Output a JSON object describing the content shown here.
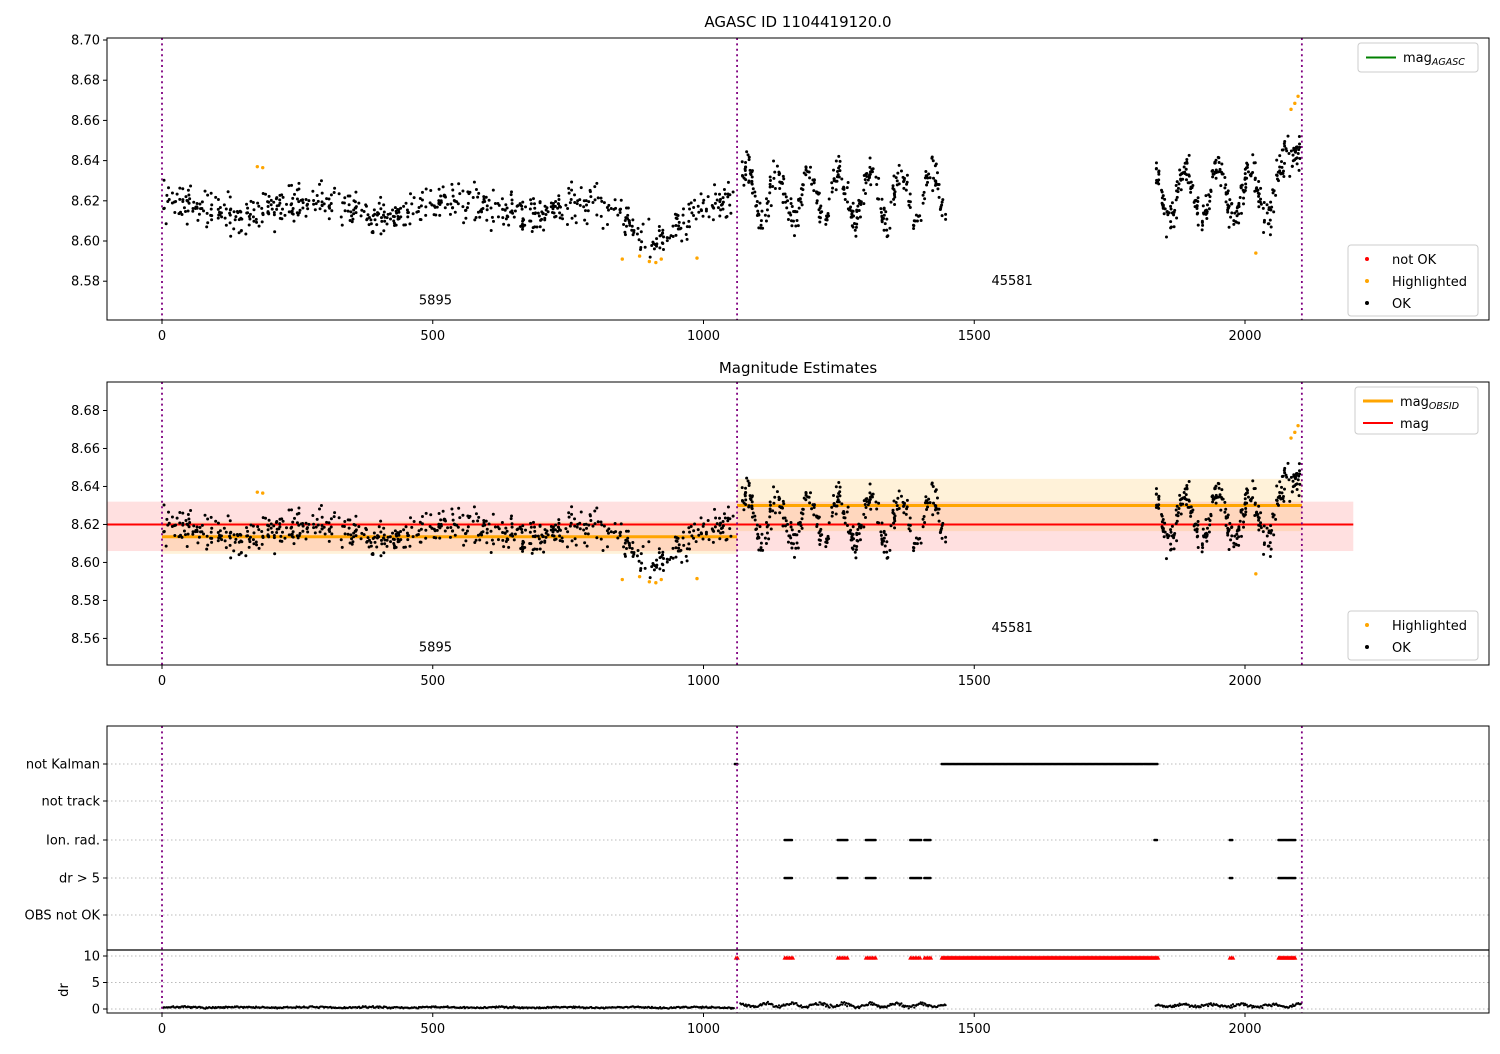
{
  "figure_title": "AGASC ID 1104419120.0",
  "colors": {
    "ok": "#000000",
    "highlighted": "#ffa500",
    "not_ok": "#ff0000",
    "mag_line": "#ff0000",
    "mag_band": "rgba(255,0,0,0.12)",
    "mag_obsid_line": "#ffa500",
    "mag_obsid_band": "rgba(255,165,0,0.15)",
    "mag_agasc_line": "#008000",
    "vline": "#800080",
    "grid": "#bbbbbb",
    "dr_limit_line": "#000000"
  },
  "chart_data": [
    {
      "type": "scatter",
      "title": "AGASC ID 1104419120.0",
      "xlim": [
        -102,
        2450
      ],
      "ylim": [
        8.5607,
        8.701
      ],
      "xticks": [
        0,
        500,
        1000,
        1500,
        2000
      ],
      "yticks": [
        8.58,
        8.6,
        8.62,
        8.64,
        8.66,
        8.68,
        8.7
      ],
      "vlines_x": [
        0,
        1062,
        2105
      ],
      "obsid_labels": [
        {
          "text": "5895",
          "x": 505,
          "y": 8.5685
        },
        {
          "text": "45581",
          "x": 1570,
          "y": 8.578
        }
      ],
      "legend_line": [
        {
          "main": "mag",
          "sub": "AGASC"
        }
      ],
      "legend_markers": [
        {
          "label": "not OK",
          "color_key": "not_ok"
        },
        {
          "label": "Highlighted",
          "color_key": "highlighted"
        },
        {
          "label": "OK",
          "color_key": "ok"
        }
      ],
      "scatter_segments": [
        {
          "x0": 2,
          "x1": 1055,
          "n": 680,
          "base": 8.6163,
          "wave_amp": 0.0035,
          "wave_period": 260,
          "wave_phase": 1.2,
          "noise": 0.005,
          "dip_center": 905,
          "dip_width": 58,
          "dip_depth": 0.013
        },
        {
          "x0": 1068,
          "x1": 1448,
          "n": 340,
          "base": 8.6225,
          "wave_amp": 0.0125,
          "wave_period": 57,
          "wave_phase": 0.3,
          "noise": 0.0048
        },
        {
          "x0": 1835,
          "x1": 2103,
          "n": 300,
          "base": 8.6235,
          "wave_amp": 0.0135,
          "wave_period": 60,
          "wave_phase": 2.1,
          "noise": 0.0048,
          "rise_from": 2068,
          "rise_slope": 0.0011
        }
      ],
      "highlighted_points": [
        [
          176,
          8.637
        ],
        [
          186,
          8.6365
        ],
        [
          850,
          8.591
        ],
        [
          882,
          8.5925
        ],
        [
          900,
          8.5898
        ],
        [
          912,
          8.5893
        ],
        [
          922,
          8.591
        ],
        [
          988,
          8.5915
        ],
        [
          2020,
          8.594
        ],
        [
          2085,
          8.6655
        ],
        [
          2092,
          8.6685
        ],
        [
          2098,
          8.672
        ]
      ]
    },
    {
      "type": "scatter",
      "title": "Magnitude Estimates",
      "xlim": [
        -102,
        2450
      ],
      "ylim": [
        8.546,
        8.695
      ],
      "xticks": [
        0,
        500,
        1000,
        1500,
        2000
      ],
      "yticks": [
        8.56,
        8.58,
        8.6,
        8.62,
        8.64,
        8.66,
        8.68
      ],
      "vlines_x": [
        0,
        1062,
        2105
      ],
      "obsid_labels": [
        {
          "text": "5895",
          "x": 505,
          "y": 8.553
        },
        {
          "text": "45581",
          "x": 1570,
          "y": 8.5635
        }
      ],
      "legend_line": [
        {
          "main": "mag",
          "sub": "OBSID"
        },
        {
          "main": "mag",
          "sub": ""
        }
      ],
      "legend_markers": [
        {
          "label": "Highlighted",
          "color_key": "highlighted"
        },
        {
          "label": "OK",
          "color_key": "ok"
        }
      ],
      "mag_line": {
        "y": 8.62,
        "x0": -102,
        "x1": 2200
      },
      "mag_band": {
        "y0": 8.606,
        "y1": 8.632,
        "x0": -102,
        "x1": 2200
      },
      "obsid_lines": [
        {
          "y": 8.6135,
          "x0": 0,
          "x1": 1062
        },
        {
          "y": 8.63,
          "x0": 1062,
          "x1": 2105
        }
      ],
      "obsid_bands": [
        {
          "y0": 8.6045,
          "y1": 8.6215,
          "x0": 0,
          "x1": 1062
        },
        {
          "y0": 8.6165,
          "y1": 8.644,
          "x0": 1062,
          "x1": 2105
        }
      ],
      "scatter_segments": "same_as_plot_0",
      "highlighted_points": "same_as_plot_0"
    },
    {
      "type": "scatter",
      "title": "",
      "xlim": [
        -102,
        2450
      ],
      "xticks": [
        0,
        500,
        1000,
        1500,
        2000
      ],
      "vlines_x": [
        0,
        1062,
        2105
      ],
      "ylabel": "dr",
      "categories": [
        "not Kalman",
        "not track",
        "Ion. rad.",
        "dr > 5",
        "OBS not OK"
      ],
      "category_runs": {
        "not Kalman": [
          [
            1058,
            1064
          ],
          [
            1440,
            1840
          ]
        ],
        "not track": [],
        "Ion. rad.": [
          [
            1150,
            1165
          ],
          [
            1248,
            1266
          ],
          [
            1300,
            1318
          ],
          [
            1382,
            1402
          ],
          [
            1408,
            1420
          ],
          [
            1833,
            1838
          ],
          [
            1972,
            1978
          ],
          [
            2062,
            2094
          ]
        ],
        "dr > 5": [
          [
            1150,
            1165
          ],
          [
            1248,
            1266
          ],
          [
            1300,
            1318
          ],
          [
            1382,
            1402
          ],
          [
            1408,
            1420
          ],
          [
            1972,
            1978
          ],
          [
            2062,
            2094
          ]
        ],
        "OBS not OK": []
      },
      "dr_ticks": [
        0,
        5,
        10
      ],
      "dr_limit_value": 10,
      "dr_red_value": 9.65,
      "dr_red_runs": [
        [
          1060,
          1064
        ],
        [
          1150,
          1165
        ],
        [
          1248,
          1266
        ],
        [
          1300,
          1318
        ],
        [
          1382,
          1402
        ],
        [
          1408,
          1420
        ],
        [
          1440,
          1840
        ],
        [
          1972,
          1978
        ],
        [
          2062,
          2094
        ]
      ],
      "dr_trace_segments": [
        {
          "x0": 2,
          "x1": 1057,
          "step": 1.7,
          "base": 0.3,
          "wave_amp": 0.07,
          "wave_period": 120,
          "noise": 0.09
        },
        {
          "x0": 1068,
          "x1": 1448,
          "step": 1.7,
          "base": 0.72,
          "wave_amp": 0.3,
          "wave_period": 48,
          "noise": 0.17
        },
        {
          "x0": 1835,
          "x1": 2105,
          "step": 1.7,
          "base": 0.65,
          "wave_amp": 0.24,
          "wave_period": 55,
          "noise": 0.15
        }
      ]
    }
  ]
}
